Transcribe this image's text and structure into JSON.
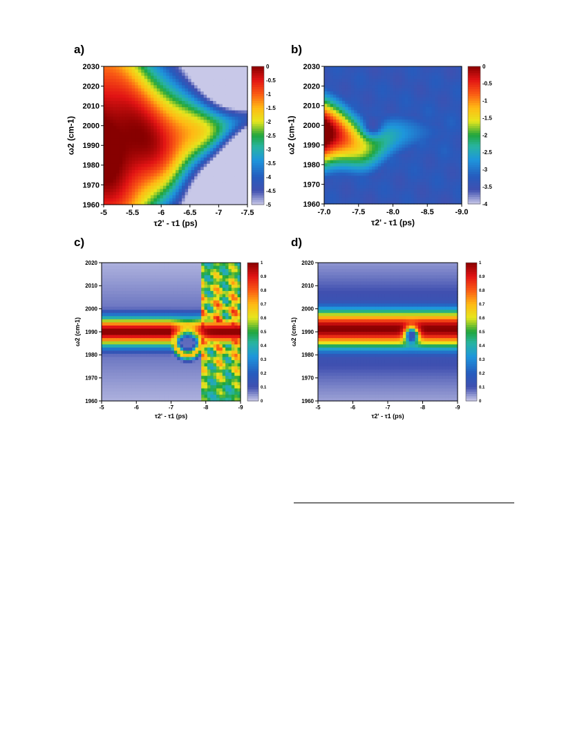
{
  "panels": [
    {
      "id": "a",
      "label": "a)"
    },
    {
      "id": "b",
      "label": "b)"
    },
    {
      "id": "c",
      "label": "c)"
    },
    {
      "id": "d",
      "label": "d)"
    }
  ],
  "chart_data": [
    {
      "id": "a",
      "type": "heatmap",
      "xlabel": "τ2' - τ1 (ps)",
      "ylabel": "ω2 (cm-1)",
      "xlim": [
        -5,
        -7.5
      ],
      "ylim": [
        1960,
        2030
      ],
      "xticks": [
        "-5",
        "-5.5",
        "-6",
        "-6.5",
        "-7",
        "-7.5"
      ],
      "yticks": [
        "1960",
        "1970",
        "1980",
        "1990",
        "2000",
        "2010",
        "2020",
        "2030"
      ],
      "colorbar": {
        "range": [
          -5,
          0
        ],
        "ticks": [
          "0",
          "-0.5",
          "-1",
          "-1.5",
          "-2",
          "-2.5",
          "-3",
          "-3.5",
          "-4",
          "-4.5",
          "-5"
        ]
      }
    },
    {
      "id": "b",
      "type": "heatmap",
      "xlabel": "τ2' - τ1 (ps)",
      "ylabel": "ω2 (cm-1)",
      "xlim": [
        -7.0,
        -9.0
      ],
      "ylim": [
        1960,
        2030
      ],
      "xticks": [
        "-7.0",
        "-7.5",
        "-8.0",
        "-8.5",
        "-9.0"
      ],
      "yticks": [
        "1960",
        "1970",
        "1980",
        "1990",
        "2000",
        "2010",
        "2020",
        "2030"
      ],
      "colorbar": {
        "range": [
          -4,
          0
        ],
        "ticks": [
          "0",
          "-0.5",
          "-1",
          "-1.5",
          "-2",
          "-2.5",
          "-3",
          "-3.5",
          "-4"
        ]
      }
    },
    {
      "id": "c",
      "type": "heatmap",
      "xlabel": "τ2' - τ1 (ps)",
      "ylabel": "ω2 (cm-1)",
      "xlim": [
        -5,
        -9
      ],
      "ylim": [
        1960,
        2020
      ],
      "xticks": [
        "-5",
        "-6",
        "-7",
        "-8",
        "-9"
      ],
      "yticks": [
        "1960",
        "1970",
        "1980",
        "1990",
        "2000",
        "2010",
        "2020"
      ],
      "colorbar": {
        "range": [
          0,
          1
        ],
        "ticks": [
          "1",
          "0.9",
          "0.8",
          "0.7",
          "0.6",
          "0.5",
          "0.4",
          "0.3",
          "0.2",
          "0.1",
          "0"
        ]
      }
    },
    {
      "id": "d",
      "type": "heatmap",
      "xlabel": "τ2' - τ1 (ps)",
      "ylabel": "ω2 (cm-1)",
      "xlim": [
        -5,
        -9
      ],
      "ylim": [
        1960,
        2020
      ],
      "xticks": [
        "-5",
        "-6",
        "-7",
        "-8",
        "-9"
      ],
      "yticks": [
        "1960",
        "1970",
        "1980",
        "1990",
        "2000",
        "2010",
        "2020"
      ],
      "colorbar": {
        "range": [
          0,
          1
        ],
        "ticks": [
          "1",
          "0.9",
          "0.8",
          "0.7",
          "0.6",
          "0.5",
          "0.4",
          "0.3",
          "0.2",
          "0.1",
          "0"
        ]
      }
    }
  ]
}
